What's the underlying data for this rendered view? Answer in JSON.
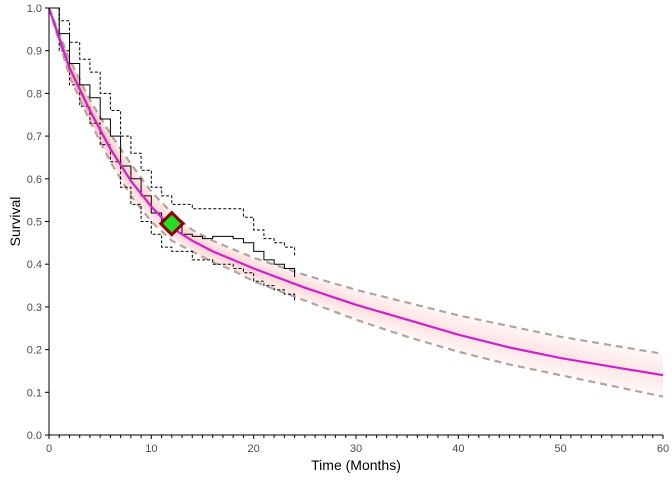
{
  "chart_data": {
    "type": "line",
    "xlabel": "Time (Months)",
    "ylabel": "Survival",
    "xlim": [
      0,
      60
    ],
    "ylim": [
      0,
      1
    ],
    "x_ticks": [
      0,
      10,
      20,
      30,
      40,
      50,
      60
    ],
    "x_tick_labels": [
      "0",
      "10",
      "20",
      "30",
      "40",
      "50",
      "60"
    ],
    "y_ticks": [
      0,
      0.1,
      0.2,
      0.3,
      0.4,
      0.5,
      0.6,
      0.7,
      0.8,
      0.9,
      1.0
    ],
    "y_tick_labels": [
      "0.0",
      "0.1",
      "0.2",
      "0.3",
      "0.4",
      "0.5",
      "0.6",
      "0.7",
      "0.8",
      "0.9",
      "1.0"
    ],
    "grid": false,
    "legend": "none",
    "series": [
      {
        "role": "median-fit",
        "color": "#cc22cc",
        "x": [
          0,
          2,
          4,
          6,
          8,
          10,
          12,
          14,
          16,
          18,
          20,
          25,
          30,
          35,
          40,
          45,
          50,
          55,
          60
        ],
        "y": [
          1.0,
          0.86,
          0.76,
          0.67,
          0.595,
          0.535,
          0.485,
          0.455,
          0.43,
          0.41,
          0.39,
          0.345,
          0.305,
          0.27,
          0.235,
          0.205,
          0.18,
          0.16,
          0.14
        ]
      },
      {
        "role": "fit-upper-interval",
        "color": "#b3a3a3",
        "dashed": true,
        "x": [
          0,
          2,
          4,
          6,
          8,
          10,
          12,
          14,
          16,
          18,
          20,
          25,
          30,
          35,
          40,
          45,
          50,
          55,
          60
        ],
        "y": [
          1.0,
          0.88,
          0.785,
          0.705,
          0.635,
          0.57,
          0.52,
          0.48,
          0.455,
          0.435,
          0.415,
          0.375,
          0.34,
          0.31,
          0.28,
          0.255,
          0.23,
          0.21,
          0.19
        ]
      },
      {
        "role": "fit-lower-interval",
        "color": "#b3a3a3",
        "dashed": true,
        "x": [
          0,
          2,
          4,
          6,
          8,
          10,
          12,
          14,
          16,
          18,
          20,
          25,
          30,
          35,
          40,
          45,
          50,
          55,
          60
        ],
        "y": [
          1.0,
          0.84,
          0.735,
          0.64,
          0.56,
          0.5,
          0.455,
          0.43,
          0.405,
          0.385,
          0.36,
          0.315,
          0.27,
          0.23,
          0.195,
          0.165,
          0.14,
          0.115,
          0.09
        ]
      },
      {
        "role": "kaplan-meier",
        "color": "#000000",
        "step": true,
        "x": [
          0,
          1,
          2,
          3,
          4,
          5,
          6,
          7,
          8,
          9,
          10,
          11,
          12,
          13,
          14,
          15,
          16,
          17,
          18,
          19,
          20,
          21,
          22,
          23,
          24
        ],
        "y": [
          1.0,
          0.94,
          0.87,
          0.82,
          0.79,
          0.74,
          0.7,
          0.63,
          0.6,
          0.56,
          0.52,
          0.5,
          0.49,
          0.47,
          0.465,
          0.46,
          0.465,
          0.465,
          0.46,
          0.45,
          0.43,
          0.41,
          0.4,
          0.39,
          0.37
        ]
      },
      {
        "role": "kaplan-meier-upper-ci",
        "color": "#000000",
        "dotted": true,
        "step": true,
        "x": [
          0,
          1,
          2,
          3,
          4,
          5,
          6,
          7,
          8,
          9,
          10,
          11,
          12,
          14,
          16,
          18,
          19,
          20,
          21,
          22,
          23,
          24
        ],
        "y": [
          1.0,
          0.97,
          0.92,
          0.88,
          0.85,
          0.8,
          0.76,
          0.7,
          0.66,
          0.62,
          0.58,
          0.56,
          0.54,
          0.53,
          0.53,
          0.53,
          0.51,
          0.48,
          0.46,
          0.45,
          0.44,
          0.42
        ]
      },
      {
        "role": "kaplan-meier-lower-ci",
        "color": "#000000",
        "dotted": true,
        "step": true,
        "x": [
          0,
          1,
          2,
          3,
          4,
          5,
          6,
          7,
          8,
          9,
          10,
          11,
          12,
          14,
          16,
          18,
          19,
          20,
          21,
          22,
          23,
          24
        ],
        "y": [
          1.0,
          0.9,
          0.82,
          0.77,
          0.73,
          0.68,
          0.64,
          0.58,
          0.54,
          0.5,
          0.47,
          0.44,
          0.43,
          0.41,
          0.4,
          0.39,
          0.38,
          0.36,
          0.35,
          0.34,
          0.33,
          0.31
        ]
      }
    ],
    "marker": {
      "shape": "diamond",
      "x": 12,
      "y": 0.495,
      "fill": "#22dd22",
      "border": "#8b0000"
    },
    "colors": {
      "simulation_band": "#ff6a6a",
      "axis": "#000000"
    }
  }
}
